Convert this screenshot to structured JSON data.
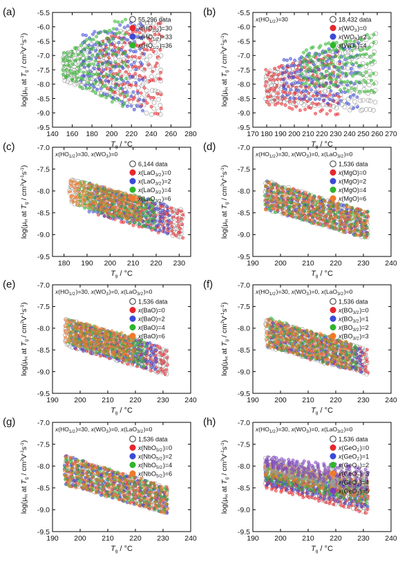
{
  "figure": {
    "colors": {
      "red": "#e8262b",
      "blue": "#3b49d6",
      "green": "#2fb52c",
      "orange": "#f07a2a",
      "purple": "#7b3fbf",
      "all_data_ring": "#8c8c8c"
    }
  },
  "chart_data": [
    {
      "panel": "(a)",
      "type": "scatter",
      "xlabel": "Tg / °C",
      "ylabel": "log(μH at Tg / cm²V⁻¹s⁻¹)",
      "xlim": [
        140,
        280
      ],
      "ylim": [
        -9.5,
        -5.5
      ],
      "xticks": [
        140,
        160,
        180,
        200,
        220,
        240,
        260,
        280
      ],
      "yticks": [
        -9.5,
        -9.0,
        -8.5,
        -8.0,
        -7.5,
        -7.0,
        -6.5,
        -6.0,
        -5.5
      ],
      "condition": "",
      "legend": [
        "55,296 data",
        "x(HO1/2)=30",
        "x(HO1/2)=33",
        "x(HO1/2)=36"
      ],
      "series": [
        {
          "name": "55,296 data",
          "color": "all",
          "x_range": [
            152,
            250
          ],
          "y_top": [
            -6.95,
            -5.75
          ],
          "y_bottom": [
            -7.85,
            -9.05
          ]
        },
        {
          "name": "x(HO1/2)=30",
          "color": "red",
          "x_range": [
            188,
            250
          ],
          "y_top": [
            -6.55,
            -5.85
          ],
          "y_bottom": [
            -7.95,
            -9.0
          ]
        },
        {
          "name": "x(HO1/2)=33",
          "color": "blue",
          "x_range": [
            170,
            232
          ],
          "y_top": [
            -6.35,
            -5.9
          ],
          "y_bottom": [
            -7.9,
            -8.95
          ]
        },
        {
          "name": "x(HO1/2)=36",
          "color": "green",
          "x_range": [
            152,
            214
          ],
          "y_top": [
            -6.95,
            -5.75
          ],
          "y_bottom": [
            -7.75,
            -8.75
          ]
        }
      ]
    },
    {
      "panel": "(b)",
      "type": "scatter",
      "xlabel": "Tg / °C",
      "ylabel": "log(μH at Tg / cm²V⁻¹s⁻¹)",
      "xlim": [
        170,
        270
      ],
      "ylim": [
        -9.5,
        -5.5
      ],
      "xticks": [
        170,
        180,
        190,
        200,
        210,
        220,
        230,
        240,
        250,
        260,
        270
      ],
      "yticks": [
        -9.5,
        -9.0,
        -8.5,
        -8.0,
        -7.5,
        -7.0,
        -6.5,
        -6.0,
        -5.5
      ],
      "condition": "x(HO1/2)=30",
      "legend": [
        "18,432 data",
        "x(WO3)=0",
        "x(WO3)=2",
        "x(WO3)=4"
      ],
      "series": [
        {
          "name": "18,432 data",
          "color": "all",
          "x_range": [
            180,
            258
          ],
          "y_top": [
            -7.6,
            -6.3
          ],
          "y_bottom": [
            -8.6,
            -8.9
          ]
        },
        {
          "name": "x(WO3)=0",
          "color": "red",
          "x_range": [
            180,
            232
          ],
          "y_top": [
            -7.55,
            -6.95
          ],
          "y_bottom": [
            -8.65,
            -9.05
          ]
        },
        {
          "name": "x(WO3)=2",
          "color": "blue",
          "x_range": [
            192,
            246
          ],
          "y_top": [
            -7.2,
            -6.65
          ],
          "y_bottom": [
            -8.4,
            -8.75
          ]
        },
        {
          "name": "x(WO3)=4",
          "color": "green",
          "x_range": [
            206,
            258
          ],
          "y_top": [
            -6.85,
            -6.3
          ],
          "y_bottom": [
            -7.95,
            -8.3
          ]
        }
      ]
    },
    {
      "panel": "(c)",
      "type": "scatter",
      "xlabel": "Tg / °C",
      "ylabel": "log(μH at Tg / cm²V⁻¹s⁻¹)",
      "xlim": [
        175,
        235
      ],
      "ylim": [
        -9.5,
        -7.0
      ],
      "xticks": [
        180,
        190,
        200,
        210,
        220,
        230
      ],
      "yticks": [
        -9.5,
        -9.0,
        -8.5,
        -8.0,
        -7.5,
        -7.0
      ],
      "condition": "x(HO1/2)=30, x(WO3)=0",
      "legend": [
        "6,144 data",
        "x(LaO3/2)=0",
        "x(LaO3/2)=2",
        "x(LaO3/2)=4",
        "x(LaO3/2)=6"
      ],
      "series": [
        {
          "name": "6,144 data",
          "color": "all",
          "x_range": [
            183,
            231
          ],
          "y_top": [
            -7.75,
            -8.45
          ],
          "y_bottom": [
            -8.25,
            -9.05
          ]
        },
        {
          "name": "x(LaO3/2)=0",
          "color": "red",
          "x_range": [
            195,
            231
          ],
          "y_top": [
            -7.95,
            -8.45
          ],
          "y_bottom": [
            -8.55,
            -9.05
          ]
        },
        {
          "name": "x(LaO3/2)=2",
          "color": "blue",
          "x_range": [
            191,
            225
          ],
          "y_top": [
            -7.85,
            -8.35
          ],
          "y_bottom": [
            -8.45,
            -8.95
          ]
        },
        {
          "name": "x(LaO3/2)=4",
          "color": "green",
          "x_range": [
            187,
            219
          ],
          "y_top": [
            -7.8,
            -8.25
          ],
          "y_bottom": [
            -8.35,
            -8.85
          ]
        },
        {
          "name": "x(LaO3/2)=6",
          "color": "orange",
          "x_range": [
            183,
            213
          ],
          "y_top": [
            -7.75,
            -8.15
          ],
          "y_bottom": [
            -8.25,
            -8.7
          ]
        }
      ]
    },
    {
      "panel": "(d)",
      "type": "scatter",
      "xlabel": "Tg / °C",
      "ylabel": "log(μH at Tg / cm²V⁻¹s⁻¹)",
      "xlim": [
        190,
        240
      ],
      "ylim": [
        -9.5,
        -7.0
      ],
      "xticks": [
        190,
        200,
        210,
        220,
        230,
        240
      ],
      "yticks": [
        -9.5,
        -9.0,
        -8.5,
        -8.0,
        -7.5,
        -7.0
      ],
      "condition": "x(HO1/2)=30, x(WO3)=0, x(LaO3/2)=0",
      "legend": [
        "1,536 data",
        "x(MgO)=0",
        "x(MgO)=2",
        "x(MgO)=4",
        "x(MgO)=6"
      ],
      "series": [
        {
          "name": "1,536 data",
          "color": "all",
          "x_range": [
            195,
            231
          ],
          "y_top": [
            -7.8,
            -8.5
          ],
          "y_bottom": [
            -8.4,
            -9.05
          ]
        },
        {
          "name": "x(MgO)=0",
          "color": "red",
          "x_range": [
            195,
            231
          ],
          "y_top": [
            -7.8,
            -8.5
          ],
          "y_bottom": [
            -8.4,
            -9.05
          ]
        },
        {
          "name": "x(MgO)=2",
          "color": "blue",
          "x_range": [
            195,
            231
          ],
          "y_top": [
            -7.8,
            -8.5
          ],
          "y_bottom": [
            -8.4,
            -9.05
          ]
        },
        {
          "name": "x(MgO)=4",
          "color": "green",
          "x_range": [
            195,
            231
          ],
          "y_top": [
            -7.8,
            -8.5
          ],
          "y_bottom": [
            -8.4,
            -9.05
          ]
        },
        {
          "name": "x(MgO)=6",
          "color": "orange",
          "x_range": [
            195,
            231
          ],
          "y_top": [
            -7.8,
            -8.5
          ],
          "y_bottom": [
            -8.4,
            -9.05
          ]
        }
      ]
    },
    {
      "panel": "(e)",
      "type": "scatter",
      "xlabel": "Tg / °C",
      "ylabel": "log(μH at Tg / cm²V⁻¹s⁻¹)",
      "xlim": [
        190,
        240
      ],
      "ylim": [
        -9.5,
        -7.0
      ],
      "xticks": [
        190,
        200,
        210,
        220,
        230,
        240
      ],
      "yticks": [
        -9.5,
        -9.0,
        -8.5,
        -8.0,
        -7.5,
        -7.0
      ],
      "condition": "x(HO1/2)=30, x(WO3)=0, x(LaO3/2)=0",
      "legend": [
        "1,536 data",
        "x(BaO)=0",
        "x(BaO)=2",
        "x(BaO)=4",
        "x(BaO)=6"
      ],
      "series": [
        {
          "name": "1,536 data",
          "color": "all",
          "x_range": [
            195,
            231
          ],
          "y_top": [
            -7.8,
            -8.5
          ],
          "y_bottom": [
            -8.4,
            -9.05
          ]
        },
        {
          "name": "x(BaO)=0",
          "color": "red",
          "x_range": [
            199,
            231
          ],
          "y_top": [
            -7.9,
            -8.5
          ],
          "y_bottom": [
            -8.45,
            -9.05
          ]
        },
        {
          "name": "x(BaO)=2",
          "color": "blue",
          "x_range": [
            197,
            227
          ],
          "y_top": [
            -7.85,
            -8.4
          ],
          "y_bottom": [
            -8.4,
            -8.95
          ]
        },
        {
          "name": "x(BaO)=4",
          "color": "green",
          "x_range": [
            196,
            223
          ],
          "y_top": [
            -7.82,
            -8.3
          ],
          "y_bottom": [
            -8.35,
            -8.85
          ]
        },
        {
          "name": "x(BaO)=6",
          "color": "orange",
          "x_range": [
            195,
            219
          ],
          "y_top": [
            -7.8,
            -8.2
          ],
          "y_bottom": [
            -8.3,
            -8.75
          ]
        }
      ]
    },
    {
      "panel": "(f)",
      "type": "scatter",
      "xlabel": "Tg / °C",
      "ylabel": "log(μH at Tg / cm²V⁻¹s⁻¹)",
      "xlim": [
        190,
        240
      ],
      "ylim": [
        -9.5,
        -7.0
      ],
      "xticks": [
        190,
        200,
        210,
        220,
        230,
        240
      ],
      "yticks": [
        -9.5,
        -9.0,
        -8.5,
        -8.0,
        -7.5,
        -7.0
      ],
      "condition": "x(HO1/2)=30, x(WO3)=0, x(LaO3/2)=0",
      "legend": [
        "1,536 data",
        "x(BO3/2)=0",
        "x(BO3/2)=1",
        "x(BO3/2)=2",
        "x(BO3/2)=3"
      ],
      "series": [
        {
          "name": "1,536 data",
          "color": "all",
          "x_range": [
            195,
            231
          ],
          "y_top": [
            -7.8,
            -8.5
          ],
          "y_bottom": [
            -8.4,
            -9.05
          ]
        },
        {
          "name": "x(BO3/2)=0",
          "color": "red",
          "x_range": [
            197,
            231
          ],
          "y_top": [
            -7.85,
            -8.5
          ],
          "y_bottom": [
            -8.45,
            -9.05
          ]
        },
        {
          "name": "x(BO3/2)=1",
          "color": "blue",
          "x_range": [
            196,
            229
          ],
          "y_top": [
            -7.82,
            -8.45
          ],
          "y_bottom": [
            -8.42,
            -9.0
          ]
        },
        {
          "name": "x(BO3/2)=2",
          "color": "green",
          "x_range": [
            196,
            227
          ],
          "y_top": [
            -7.8,
            -8.4
          ],
          "y_bottom": [
            -8.4,
            -8.95
          ]
        },
        {
          "name": "x(BO3/2)=3",
          "color": "orange",
          "x_range": [
            195,
            225
          ],
          "y_top": [
            -7.8,
            -8.35
          ],
          "y_bottom": [
            -8.38,
            -8.9
          ]
        }
      ]
    },
    {
      "panel": "(g)",
      "type": "scatter",
      "xlabel": "Tg / °C",
      "ylabel": "log(μH at Tg / cm²V⁻¹s⁻¹)",
      "xlim": [
        190,
        240
      ],
      "ylim": [
        -9.5,
        -7.0
      ],
      "xticks": [
        190,
        200,
        210,
        220,
        230,
        240
      ],
      "yticks": [
        -9.5,
        -9.0,
        -8.5,
        -8.0,
        -7.5,
        -7.0
      ],
      "condition": "x(HO1/2)=30, x(WO3)=0, x(LaO3/2)=0",
      "legend": [
        "1,536 data",
        "x(NbO5/2)=0",
        "x(NbO5/2)=2",
        "x(NbO5/2)=4",
        "x(NbO5/2)=6"
      ],
      "series": [
        {
          "name": "1,536 data",
          "color": "all",
          "x_range": [
            195,
            231
          ],
          "y_top": [
            -7.8,
            -8.5
          ],
          "y_bottom": [
            -8.4,
            -9.05
          ]
        },
        {
          "name": "x(NbO5/2)=0",
          "color": "red",
          "x_range": [
            195,
            231
          ],
          "y_top": [
            -7.8,
            -8.5
          ],
          "y_bottom": [
            -8.4,
            -9.05
          ]
        },
        {
          "name": "x(NbO5/2)=2",
          "color": "blue",
          "x_range": [
            195,
            231
          ],
          "y_top": [
            -7.8,
            -8.5
          ],
          "y_bottom": [
            -8.4,
            -9.05
          ]
        },
        {
          "name": "x(NbO5/2)=4",
          "color": "green",
          "x_range": [
            195,
            231
          ],
          "y_top": [
            -7.8,
            -8.5
          ],
          "y_bottom": [
            -8.4,
            -9.05
          ]
        },
        {
          "name": "x(NbO5/2)=6",
          "color": "orange",
          "x_range": [
            195,
            231
          ],
          "y_top": [
            -7.8,
            -8.5
          ],
          "y_bottom": [
            -8.4,
            -9.05
          ]
        }
      ]
    },
    {
      "panel": "(h)",
      "type": "scatter",
      "xlabel": "Tg / °C",
      "ylabel": "log(μH at Tg / cm²V⁻¹s⁻¹)",
      "xlim": [
        190,
        240
      ],
      "ylim": [
        -9.5,
        -7.0
      ],
      "xticks": [
        190,
        200,
        210,
        220,
        230,
        240
      ],
      "yticks": [
        -9.5,
        -9.0,
        -8.5,
        -8.0,
        -7.5,
        -7.0
      ],
      "condition": "x(HO1/2)=30, x(WO3)=0, x(LaO3/2)=0",
      "legend": [
        "1,536 data",
        "x(GeO2)=0",
        "x(GeO2)=1",
        "x(GeO2)=2",
        "x(GeO2)=3",
        "x(GeO2)=4",
        "x(GeO2)=5"
      ],
      "series": [
        {
          "name": "1,536 data",
          "color": "all",
          "x_range": [
            195,
            231
          ],
          "y_top": [
            -7.8,
            -8.5
          ],
          "y_bottom": [
            -8.4,
            -9.05
          ]
        },
        {
          "name": "x(GeO2)=0",
          "color": "red",
          "x_range": [
            195,
            231
          ],
          "y_top": [
            -8.25,
            -8.55
          ],
          "y_bottom": [
            -8.5,
            -9.05
          ]
        },
        {
          "name": "x(GeO2)=1",
          "color": "blue",
          "x_range": [
            195,
            231
          ],
          "y_top": [
            -8.15,
            -8.45
          ],
          "y_bottom": [
            -8.42,
            -8.95
          ]
        },
        {
          "name": "x(GeO2)=2",
          "color": "green",
          "x_range": [
            195,
            231
          ],
          "y_top": [
            -8.05,
            -8.35
          ],
          "y_bottom": [
            -8.32,
            -8.85
          ]
        },
        {
          "name": "x(GeO2)=3",
          "color": "orange",
          "x_range": [
            195,
            231
          ],
          "y_top": [
            -7.95,
            -8.25
          ],
          "y_bottom": [
            -8.22,
            -8.75
          ]
        },
        {
          "name": "x(GeO2)=4",
          "color": "gray",
          "x_range": [
            195,
            231
          ],
          "y_top": [
            -7.87,
            -8.15
          ],
          "y_bottom": [
            -8.12,
            -8.65
          ]
        },
        {
          "name": "x(GeO2)=5",
          "color": "purple",
          "x_range": [
            195,
            231
          ],
          "y_top": [
            -7.8,
            -8.05
          ],
          "y_bottom": [
            -8.02,
            -8.55
          ]
        }
      ]
    }
  ]
}
